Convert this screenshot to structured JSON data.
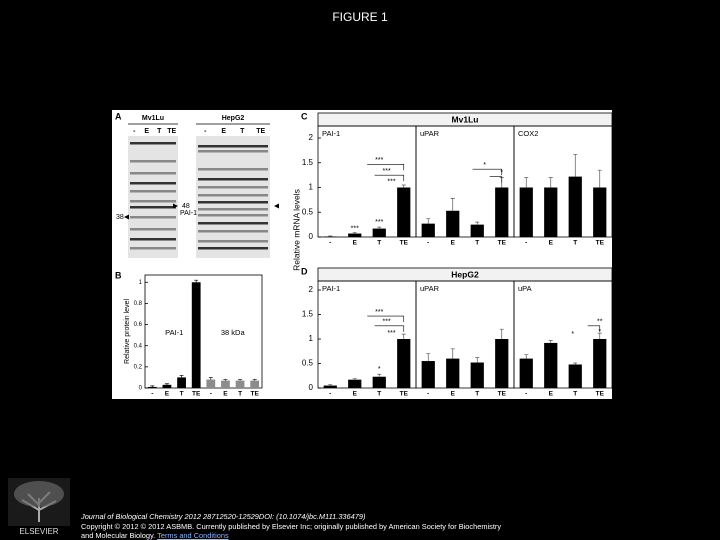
{
  "title": "FIGURE 1",
  "figure": {
    "panel_a": {
      "label": "A",
      "cell_lines": [
        "Mv1Lu",
        "HepG2"
      ],
      "lanes": [
        "-",
        "E",
        "T",
        "TE"
      ],
      "markers": [
        "48",
        "PAI-1",
        "38"
      ]
    },
    "panel_b": {
      "label": "B",
      "y_label": "Relative protein level",
      "ylim": [
        0,
        1.05
      ],
      "yticks": [
        0,
        0.2,
        0.4,
        0.6,
        0.8,
        1
      ],
      "categories": [
        "-",
        "E",
        "T",
        "TE"
      ],
      "groups": [
        {
          "name": "PAI-1",
          "color": "#000000",
          "values": [
            0.01,
            0.03,
            0.1,
            1.0
          ],
          "errors": [
            0.01,
            0.01,
            0.02,
            0.02
          ]
        },
        {
          "name": "38 kDa",
          "color": "#8c8c8c",
          "values": [
            0.08,
            0.07,
            0.07,
            0.07
          ],
          "errors": [
            0.02,
            0.01,
            0.01,
            0.01
          ]
        }
      ]
    },
    "rna_y_label": "Relative mRNA levels",
    "ylim": [
      0,
      2
    ],
    "yticks": [
      0,
      0.5,
      1,
      1.5,
      2
    ],
    "categories": [
      "-",
      "E",
      "T",
      "TE"
    ],
    "bar_color": "#000000",
    "panel_c": {
      "label": "C",
      "cell_line": "Mv1Lu",
      "genes": [
        {
          "name": "PAI-1",
          "values": [
            0.01,
            0.07,
            0.17,
            1.0
          ],
          "errors": [
            0.01,
            0.02,
            0.03,
            0.05
          ],
          "annotations": [
            "***",
            "***",
            "***",
            "***",
            "***"
          ]
        },
        {
          "name": "uPAR",
          "values": [
            0.27,
            0.53,
            0.25,
            1.0
          ],
          "errors": [
            0.1,
            0.25,
            0.05,
            0.2
          ],
          "annotations": [
            "*",
            "*"
          ]
        },
        {
          "name": "COX2",
          "values": [
            1.0,
            1.0,
            1.22,
            1.0
          ],
          "errors": [
            0.2,
            0.2,
            0.45,
            0.35
          ],
          "annotations": []
        }
      ]
    },
    "panel_d": {
      "label": "D",
      "cell_line": "HepG2",
      "genes": [
        {
          "name": "PAI-1",
          "values": [
            0.05,
            0.17,
            0.23,
            1.0
          ],
          "errors": [
            0.02,
            0.02,
            0.05,
            0.1
          ],
          "annotations": [
            "***",
            "***",
            "***",
            "*"
          ]
        },
        {
          "name": "uPAR",
          "values": [
            0.55,
            0.6,
            0.52,
            1.0
          ],
          "errors": [
            0.15,
            0.2,
            0.1,
            0.2
          ],
          "annotations": []
        },
        {
          "name": "uPA",
          "values": [
            0.6,
            0.92,
            0.48,
            1.0
          ],
          "errors": [
            0.08,
            0.05,
            0.03,
            0.12
          ],
          "annotations": [
            "**",
            "*",
            "*"
          ]
        }
      ]
    }
  },
  "citation": {
    "journal": "Journal of Biological Chemistry 2012 28712520-12529DOI: (10.1074/jbc.M111.336479)",
    "copyright": "Copyright © 2012 © 2012 ASBMB. Currently published by Elsevier Inc; originally published by American Society for Biochemistry and Molecular Biology.",
    "link": "Terms and Conditions"
  },
  "logo": "ELSEVIER"
}
